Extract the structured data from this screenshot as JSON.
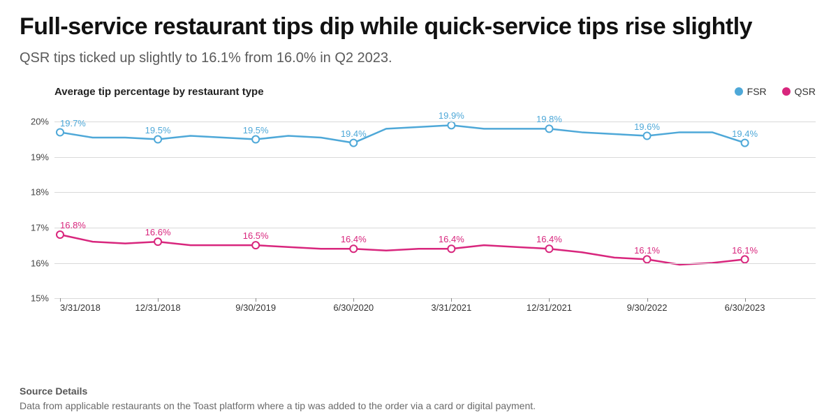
{
  "title": "Full-service restaurant tips dip while quick-service tips rise slightly",
  "subtitle": "QSR tips ticked up slightly to 16.1% from 16.0% in Q2 2023.",
  "footer": {
    "heading": "Source Details",
    "text": "Data from applicable restaurants on the Toast platform where a tip was added to the order via a card or digital payment."
  },
  "chart": {
    "type": "line",
    "inner_title": "Average tip percentage by restaurant type",
    "background_color": "#ffffff",
    "grid_color": "#d9d9d9",
    "y": {
      "min": 15,
      "max": 20.5,
      "ticks": [
        15,
        16,
        17,
        18,
        19,
        20
      ],
      "suffix": "%",
      "label_color": "#444444",
      "label_fontsize": 13
    },
    "x": {
      "min": 0,
      "max": 23,
      "tick_positions": [
        0,
        3,
        6,
        9,
        12,
        15,
        18,
        21
      ],
      "tick_labels": [
        "3/31/2018",
        "12/31/2018",
        "9/30/2019",
        "6/30/2020",
        "3/31/2021",
        "12/31/2021",
        "9/30/2022",
        "6/30/2023"
      ],
      "label_color": "#333333",
      "label_fontsize": 13
    },
    "legend": {
      "position": "top-right",
      "items": [
        {
          "label": "FSR",
          "color": "#4ea8d8"
        },
        {
          "label": "QSR",
          "color": "#d8267d"
        }
      ]
    },
    "series": [
      {
        "name": "FSR",
        "color": "#4ea8d8",
        "line_width": 2.5,
        "marker": {
          "style": "circle",
          "radius": 5,
          "fill": "#ffffff",
          "stroke": "#4ea8d8",
          "stroke_width": 2
        },
        "label_color": "#4ea8d8",
        "points": [
          {
            "x": 0,
            "y": 19.7,
            "label": "19.7%"
          },
          {
            "x": 1,
            "y": 19.55
          },
          {
            "x": 2,
            "y": 19.55
          },
          {
            "x": 3,
            "y": 19.5,
            "label": "19.5%"
          },
          {
            "x": 4,
            "y": 19.6
          },
          {
            "x": 5,
            "y": 19.55
          },
          {
            "x": 6,
            "y": 19.5,
            "label": "19.5%"
          },
          {
            "x": 7,
            "y": 19.6
          },
          {
            "x": 8,
            "y": 19.55
          },
          {
            "x": 9,
            "y": 19.4,
            "label": "19.4%"
          },
          {
            "x": 10,
            "y": 19.8
          },
          {
            "x": 11,
            "y": 19.85
          },
          {
            "x": 12,
            "y": 19.9,
            "label": "19.9%"
          },
          {
            "x": 13,
            "y": 19.8
          },
          {
            "x": 14,
            "y": 19.8
          },
          {
            "x": 15,
            "y": 19.8,
            "label": "19.8%"
          },
          {
            "x": 16,
            "y": 19.7
          },
          {
            "x": 17,
            "y": 19.65
          },
          {
            "x": 18,
            "y": 19.6,
            "label": "19.6%"
          },
          {
            "x": 19,
            "y": 19.7
          },
          {
            "x": 20,
            "y": 19.7
          },
          {
            "x": 21,
            "y": 19.4,
            "label": "19.4%"
          }
        ]
      },
      {
        "name": "QSR",
        "color": "#d8267d",
        "line_width": 2.5,
        "marker": {
          "style": "circle",
          "radius": 5,
          "fill": "#ffffff",
          "stroke": "#d8267d",
          "stroke_width": 2
        },
        "label_color": "#d8267d",
        "points": [
          {
            "x": 0,
            "y": 16.8,
            "label": "16.8%"
          },
          {
            "x": 1,
            "y": 16.6
          },
          {
            "x": 2,
            "y": 16.55
          },
          {
            "x": 3,
            "y": 16.6,
            "label": "16.6%"
          },
          {
            "x": 4,
            "y": 16.5
          },
          {
            "x": 5,
            "y": 16.5
          },
          {
            "x": 6,
            "y": 16.5,
            "label": "16.5%"
          },
          {
            "x": 7,
            "y": 16.45
          },
          {
            "x": 8,
            "y": 16.4
          },
          {
            "x": 9,
            "y": 16.4,
            "label": "16.4%"
          },
          {
            "x": 10,
            "y": 16.35
          },
          {
            "x": 11,
            "y": 16.4
          },
          {
            "x": 12,
            "y": 16.4,
            "label": "16.4%"
          },
          {
            "x": 13,
            "y": 16.5
          },
          {
            "x": 14,
            "y": 16.45
          },
          {
            "x": 15,
            "y": 16.4,
            "label": "16.4%"
          },
          {
            "x": 16,
            "y": 16.3
          },
          {
            "x": 17,
            "y": 16.15
          },
          {
            "x": 18,
            "y": 16.1,
            "label": "16.1%"
          },
          {
            "x": 19,
            "y": 15.95
          },
          {
            "x": 20,
            "y": 16.0
          },
          {
            "x": 21,
            "y": 16.1,
            "label": "16.1%"
          }
        ]
      }
    ]
  }
}
